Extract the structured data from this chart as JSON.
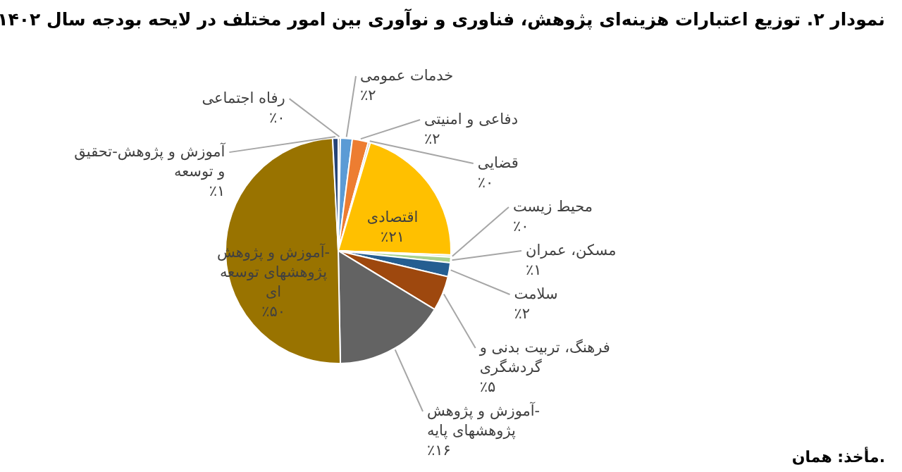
{
  "chart_data": {
    "type": "pie",
    "title": "نمودار ۲. توزیع اعتبارات هزینه‌ای پژوهش، فناوری و نوآوری بین امور مختلف در لایحه بودجه سال ۱۴۰۲",
    "categories": [
      "رفاه اجتماعی",
      "خدمات عمومی",
      "دفاعی و امنیتی",
      "قضایی",
      "اقتصادی",
      "محیط زیست",
      "مسکن، عمران",
      "سلامت",
      "فرهنگ، تربیت بدنی و گردشگری",
      "آموزش و پژوهش-پژوهشهای پایه",
      "آموزش و پژوهش-پژوهشهای توسعه ای",
      "آموزش و پژوهش-تحقیق و توسعه"
    ],
    "values": [
      0.3,
      1.7,
      2.3,
      0.3,
      21,
      0.3,
      0.8,
      2,
      5,
      16,
      49.5,
      0.8
    ],
    "value_labels": [
      "٪۰",
      "٪۲",
      "٪۲",
      "٪۰",
      "٪۲۱",
      "٪۰",
      "٪۱",
      "٪۲",
      "٪۵",
      "٪۱۶",
      "٪۵۰",
      "٪۱"
    ],
    "colors": [
      "#a5a5a5",
      "#5b9bd5",
      "#ed7d31",
      "#bfbfbf",
      "#ffc000",
      "#c9d9b0",
      "#a9d18e",
      "#255e91",
      "#9e480e",
      "#636363",
      "#997300",
      "#264478"
    ],
    "annotations": [
      "مأخذ: همان."
    ]
  }
}
